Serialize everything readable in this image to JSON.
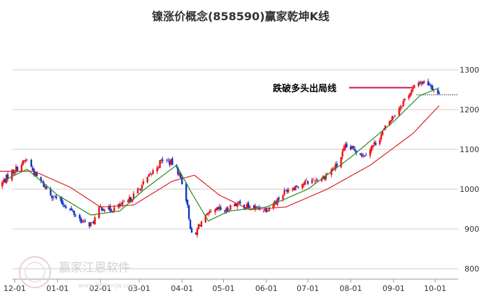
{
  "chart_data": {
    "type": "candlestick",
    "title": "镍涨价概念(858590)赢家乾坤K线",
    "x_ticks": [
      "12-01",
      "01-01",
      "02-01",
      "03-01",
      "04-01",
      "05-01",
      "06-01",
      "07-01",
      "08-01",
      "09-01",
      "10-01"
    ],
    "y_ticks": [
      800,
      900,
      1000,
      1100,
      1200,
      1300
    ],
    "ylim": [
      790,
      1320
    ],
    "grid": "horizontal",
    "annotation": {
      "text": "跌破多头出局线",
      "value": 1255
    },
    "last_close_level": 1237,
    "colors": {
      "up": "#ee1111",
      "down": "#1133cc",
      "neutral": "#993399",
      "ma_short": "#228822",
      "ma_long": "#dd2222",
      "annotation_line": "#cc1155",
      "grid": "#cccccc"
    },
    "price_path_anchors": [
      {
        "date": "2021-11-20",
        "close": 1008
      },
      {
        "date": "2021-11-28",
        "close": 1040
      },
      {
        "date": "2021-12-05",
        "close": 1060
      },
      {
        "date": "2021-12-10",
        "close": 1075
      },
      {
        "date": "2021-12-16",
        "close": 1035
      },
      {
        "date": "2021-12-28",
        "close": 985
      },
      {
        "date": "2022-01-08",
        "close": 955
      },
      {
        "date": "2022-01-20",
        "close": 915
      },
      {
        "date": "2022-01-26",
        "close": 912
      },
      {
        "date": "2022-02-01",
        "close": 955
      },
      {
        "date": "2022-02-08",
        "close": 948
      },
      {
        "date": "2022-02-20",
        "close": 965
      },
      {
        "date": "2022-03-01",
        "close": 1000
      },
      {
        "date": "2022-03-10",
        "close": 1040
      },
      {
        "date": "2022-03-18",
        "close": 1075
      },
      {
        "date": "2022-03-25",
        "close": 1065
      },
      {
        "date": "2022-03-29",
        "close": 1045
      },
      {
        "date": "2022-04-03",
        "close": 1000
      },
      {
        "date": "2022-04-06",
        "close": 930
      },
      {
        "date": "2022-04-09",
        "close": 860
      },
      {
        "date": "2022-04-13",
        "close": 910
      },
      {
        "date": "2022-04-20",
        "close": 935
      },
      {
        "date": "2022-04-28",
        "close": 950
      },
      {
        "date": "2022-05-03",
        "close": 945
      },
      {
        "date": "2022-05-08",
        "close": 965
      },
      {
        "date": "2022-05-20",
        "close": 955
      },
      {
        "date": "2022-06-01",
        "close": 950
      },
      {
        "date": "2022-06-08",
        "close": 970
      },
      {
        "date": "2022-06-16",
        "close": 1000
      },
      {
        "date": "2022-06-28",
        "close": 1015
      },
      {
        "date": "2022-07-12",
        "close": 1030
      },
      {
        "date": "2022-07-22",
        "close": 1060
      },
      {
        "date": "2022-07-28",
        "close": 1105
      },
      {
        "date": "2022-08-04",
        "close": 1100
      },
      {
        "date": "2022-08-10",
        "close": 1085
      },
      {
        "date": "2022-08-20",
        "close": 1120
      },
      {
        "date": "2022-08-28",
        "close": 1165
      },
      {
        "date": "2022-09-05",
        "close": 1205
      },
      {
        "date": "2022-09-12",
        "close": 1240
      },
      {
        "date": "2022-09-20",
        "close": 1270
      },
      {
        "date": "2022-09-27",
        "close": 1265
      },
      {
        "date": "2022-10-01",
        "close": 1248
      },
      {
        "date": "2022-10-04",
        "close": 1237
      }
    ],
    "ma_short_anchors": [
      {
        "date": "2021-11-25",
        "value": 1025
      },
      {
        "date": "2021-12-10",
        "value": 1050
      },
      {
        "date": "2022-01-01",
        "value": 985
      },
      {
        "date": "2022-01-25",
        "value": 935
      },
      {
        "date": "2022-02-15",
        "value": 945
      },
      {
        "date": "2022-03-05",
        "value": 1000
      },
      {
        "date": "2022-03-28",
        "value": 1060
      },
      {
        "date": "2022-04-08",
        "value": 990
      },
      {
        "date": "2022-04-20",
        "value": 920
      },
      {
        "date": "2022-05-05",
        "value": 945
      },
      {
        "date": "2022-06-01",
        "value": 955
      },
      {
        "date": "2022-07-01",
        "value": 1000
      },
      {
        "date": "2022-08-01",
        "value": 1080
      },
      {
        "date": "2022-09-01",
        "value": 1170
      },
      {
        "date": "2022-09-20",
        "value": 1235
      },
      {
        "date": "2022-10-04",
        "value": 1255
      }
    ],
    "ma_long_anchors": [
      {
        "date": "2021-11-20",
        "value": 1045
      },
      {
        "date": "2021-12-15",
        "value": 1045
      },
      {
        "date": "2022-01-10",
        "value": 1005
      },
      {
        "date": "2022-02-01",
        "value": 955
      },
      {
        "date": "2022-02-25",
        "value": 960
      },
      {
        "date": "2022-03-25",
        "value": 1020
      },
      {
        "date": "2022-04-10",
        "value": 1035
      },
      {
        "date": "2022-04-28",
        "value": 985
      },
      {
        "date": "2022-05-20",
        "value": 948
      },
      {
        "date": "2022-06-15",
        "value": 955
      },
      {
        "date": "2022-07-15",
        "value": 1000
      },
      {
        "date": "2022-08-15",
        "value": 1060
      },
      {
        "date": "2022-09-15",
        "value": 1140
      },
      {
        "date": "2022-10-04",
        "value": 1210
      }
    ]
  },
  "watermark": {
    "brand": "赢家江恩软件",
    "site": "www.360ynjw.com"
  }
}
